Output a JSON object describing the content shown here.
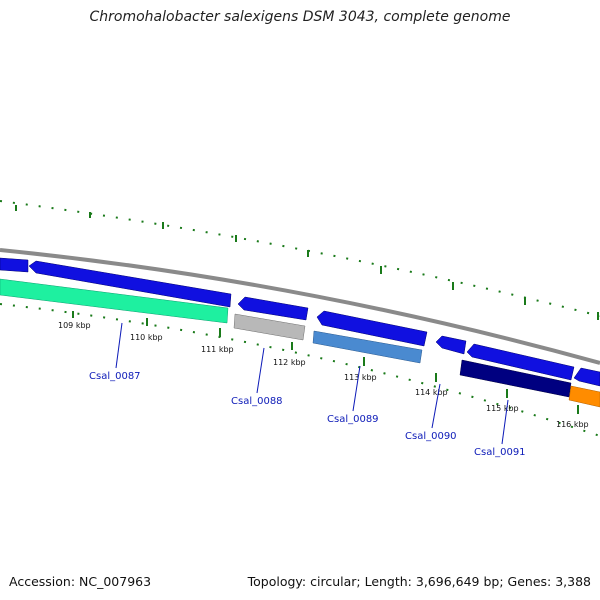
{
  "title": "Chromohalobacter salexigens DSM 3043, complete genome",
  "footer": {
    "accession": "Accession: NC_007963",
    "stats": "Topology: circular; Length: 3,696,649 bp; Genes: 3,388"
  },
  "ticks": [
    "109 kbp",
    "110 kbp",
    "111 kbp",
    "112 kbp",
    "113 kbp",
    "114 kbp",
    "115 kbp",
    "116 kbp"
  ],
  "genes": [
    "Csal_0087",
    "Csal_0088",
    "Csal_0089",
    "Csal_0090",
    "Csal_0091"
  ],
  "colors": {
    "backbone": "#8a8a8a",
    "forward_cds": "#1010e0",
    "tick": "#1a7a1a",
    "gene_label": "#0d1bb8",
    "cog_green": "#1ef0a0",
    "cog_gray": "#b8b8b8",
    "cog_steelblue": "#4a8ad0",
    "cog_navy": "#000080",
    "cog_orange": "#ff8c00"
  }
}
